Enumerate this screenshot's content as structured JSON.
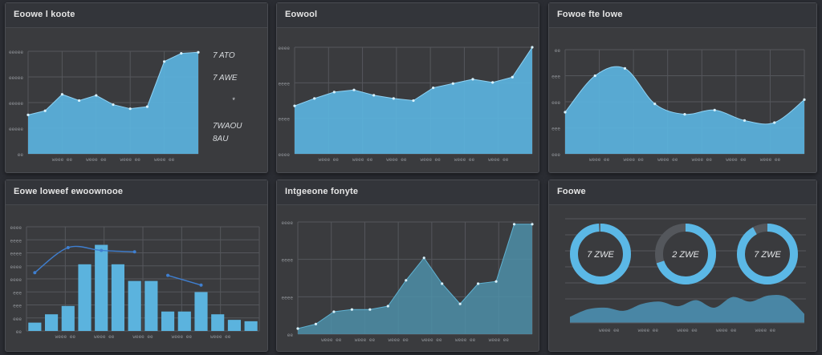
{
  "colors": {
    "accent": "#5bb8e6",
    "fill": "#5bb3de",
    "line": "#3f7fd0",
    "grid": "#55575c",
    "tick": "#8f9297",
    "bg": "#2b2d33"
  },
  "panels": {
    "p1": {
      "title": "Eoowe l koote"
    },
    "p2": {
      "title": "Eowool"
    },
    "p3": {
      "title": "Fowoe fte lowe"
    },
    "p4": {
      "title": "Eowe loweef ewoownooe"
    },
    "p5": {
      "title": "Intgeeone fonyte"
    },
    "p6": {
      "title": "Foowe"
    }
  },
  "chart_data": [
    {
      "id": "p1",
      "type": "area",
      "title": "Eoowe l koote",
      "x": [
        0,
        1,
        2,
        3,
        4,
        5,
        6,
        7,
        8,
        9,
        10
      ],
      "values": [
        38,
        42,
        58,
        52,
        57,
        48,
        44,
        46,
        90,
        98,
        99
      ],
      "ylim": [
        0,
        100
      ],
      "xticks": [
        "weee ee",
        "weee ee",
        "weee ee",
        "weee ee"
      ],
      "yticks": [
        "eeeee",
        "eeeee",
        "eeeee",
        "eeeee",
        "ee"
      ],
      "legend": [
        "7 ATO",
        "7 AWE",
        "*",
        "7WAOU",
        "8AU"
      ]
    },
    {
      "id": "p2",
      "type": "area",
      "title": "Eowool",
      "x": [
        0,
        1,
        2,
        3,
        4,
        5,
        6,
        7,
        8,
        9,
        10,
        11,
        12
      ],
      "values": [
        45,
        52,
        58,
        60,
        55,
        52,
        50,
        62,
        66,
        70,
        67,
        72,
        100
      ],
      "ylim": [
        0,
        100
      ],
      "xticks": [
        "weee ee",
        "weee ee",
        "weee ee",
        "weee ee",
        "weee ee",
        "weee ee"
      ],
      "yticks": [
        "eeee",
        "eeee",
        "eeee",
        "eeee"
      ]
    },
    {
      "id": "p3",
      "type": "area",
      "title": "Fowoe fte lowe",
      "x": [
        0,
        1,
        2,
        3,
        4,
        5,
        6,
        7,
        8
      ],
      "values": [
        40,
        75,
        82,
        48,
        38,
        42,
        32,
        30,
        52
      ],
      "ylim": [
        0,
        100
      ],
      "xticks": [
        "weee ee",
        "weee ee",
        "weee ee",
        "weee ee",
        "weee ee",
        "weee ee"
      ],
      "yticks": [
        "ee",
        "eee",
        "eee",
        "eee",
        "eee"
      ]
    },
    {
      "id": "p4",
      "type": "bar",
      "title": "Eowe loweef ewoownooe",
      "categories": [
        "1",
        "2",
        "3",
        "4",
        "5",
        "6",
        "7",
        "8",
        "9",
        "10",
        "11",
        "12",
        "13",
        "14"
      ],
      "values": [
        6,
        12,
        18,
        48,
        62,
        48,
        36,
        36,
        14,
        14,
        28,
        12,
        8,
        7
      ],
      "line": [
        42,
        null,
        60,
        null,
        58,
        null,
        57,
        null,
        40,
        null,
        33,
        null,
        null,
        null
      ],
      "ylim": [
        0,
        75
      ],
      "xticks": [
        "weee ee",
        "weee ee",
        "weee ee",
        "weee ee",
        "weee ee"
      ],
      "yticks": [
        "eeee",
        "eeee",
        "eeee",
        "eeee",
        "eeee",
        "eee",
        "eee",
        "eee",
        "ee"
      ]
    },
    {
      "id": "p5",
      "type": "area",
      "title": "Intgeeone fonyte",
      "x": [
        0,
        1,
        2,
        3,
        4,
        5,
        6,
        7,
        8,
        9,
        10,
        11,
        12,
        13
      ],
      "values": [
        5,
        9,
        20,
        22,
        22,
        25,
        48,
        68,
        45,
        27,
        45,
        47,
        98,
        98
      ],
      "ylim": [
        0,
        100
      ],
      "xticks": [
        "weee ee",
        "weee ee",
        "weee ee",
        "weee ee",
        "weee ee",
        "weee ee"
      ],
      "yticks": [
        "eeee",
        "eeee",
        "eeee",
        "ee"
      ]
    },
    {
      "id": "p6",
      "type": "donut",
      "title": "Foowe",
      "donuts": [
        {
          "label": "7 ZWE",
          "value": 99
        },
        {
          "label": "2 ZWE",
          "value": 70
        },
        {
          "label": "7 ZWE",
          "value": 92
        }
      ],
      "area": [
        8,
        18,
        20,
        16,
        25,
        28,
        22,
        30,
        20,
        34,
        28,
        36,
        34,
        12
      ],
      "xticks": [
        "weee ee",
        "weee ee",
        "weee ee",
        "weee ee",
        "weee ee"
      ]
    }
  ]
}
